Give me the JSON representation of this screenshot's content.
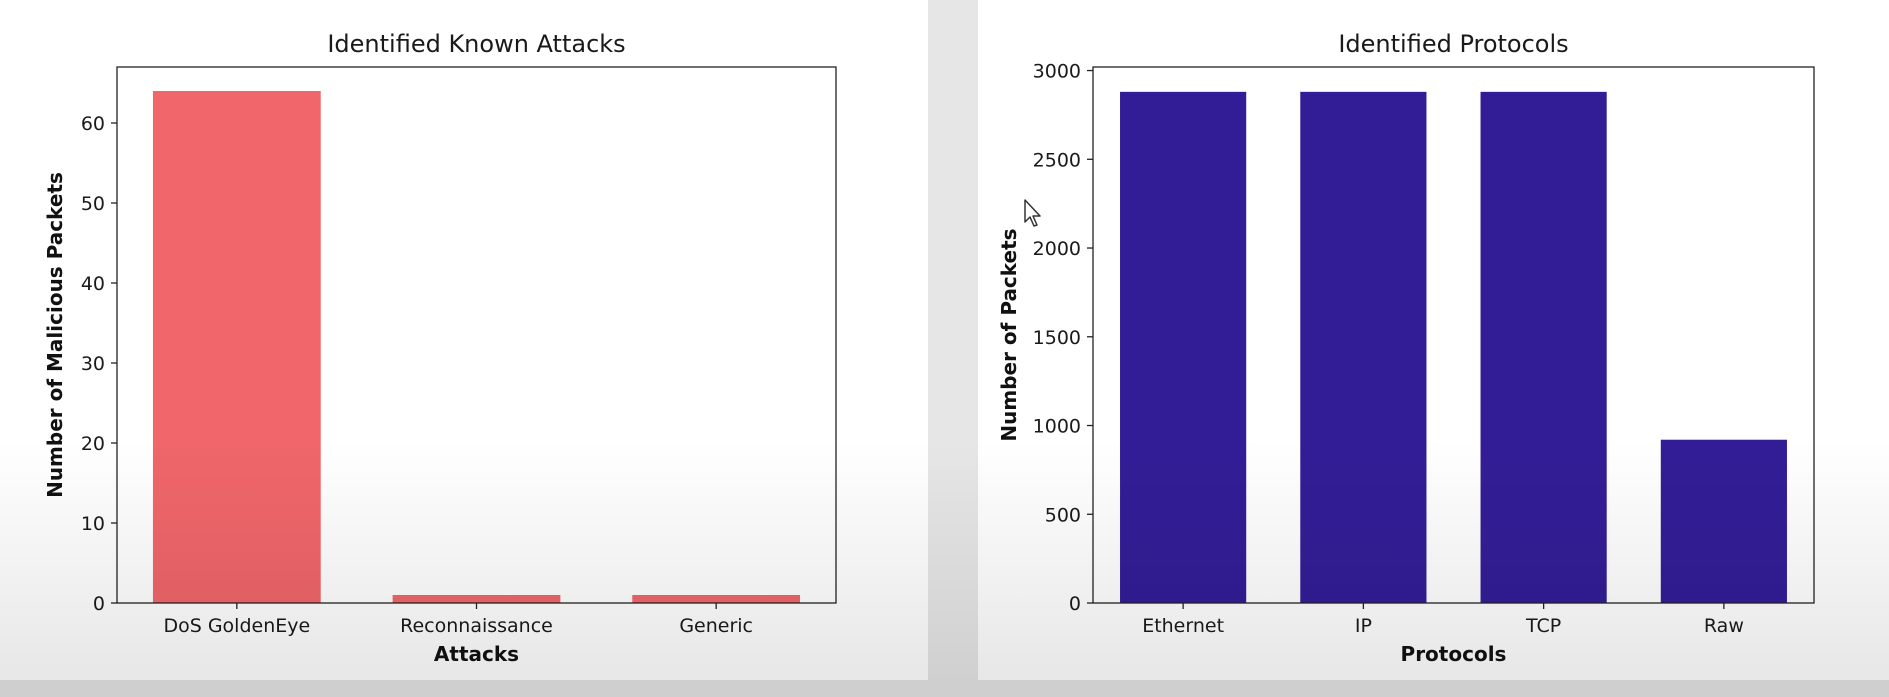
{
  "chart_data": [
    {
      "type": "bar",
      "title": "Identified Known Attacks",
      "xlabel": "Attacks",
      "ylabel": "Number of Malicious Packets",
      "categories": [
        "DoS GoldenEye",
        "Reconnaissance",
        "Generic"
      ],
      "values": [
        64,
        1,
        1
      ],
      "ylim": [
        0,
        67
      ],
      "yticks": [
        0,
        10,
        20,
        30,
        40,
        50,
        60
      ],
      "color": "#f0666a",
      "grid": false
    },
    {
      "type": "bar",
      "title": "Identified Protocols",
      "xlabel": "Protocols",
      "ylabel": "Number of Packets",
      "categories": [
        "Ethernet",
        "IP",
        "TCP",
        "Raw"
      ],
      "values": [
        2880,
        2880,
        2880,
        920
      ],
      "ylim": [
        0,
        3020
      ],
      "yticks": [
        0,
        500,
        1000,
        1500,
        2000,
        2500,
        3000
      ],
      "color": "#331d97",
      "grid": false
    }
  ]
}
